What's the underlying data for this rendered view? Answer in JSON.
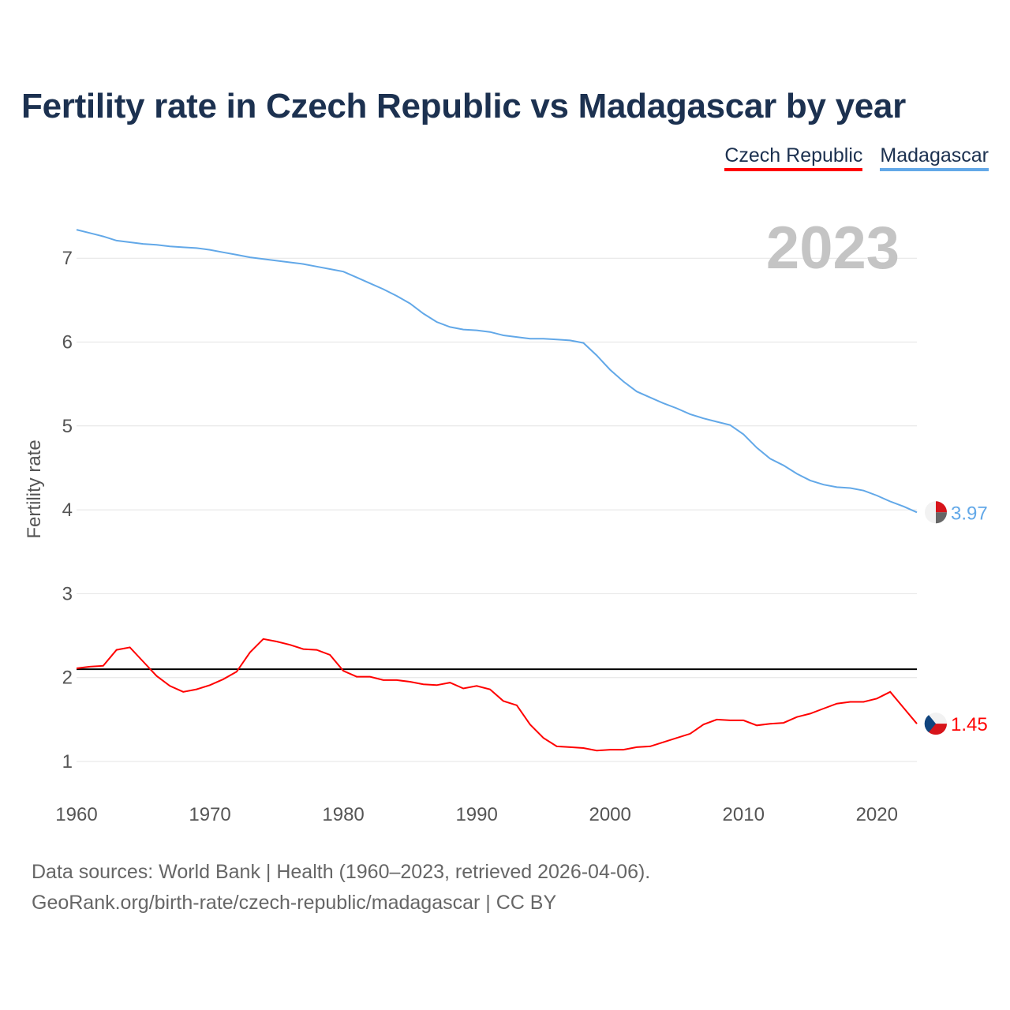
{
  "chart_data": {
    "type": "line",
    "title": "Fertility rate in Czech Republic vs Madagascar by year",
    "ylabel": "Fertility rate",
    "xlabel": "",
    "year_label": "2023",
    "xlim": [
      1960,
      2023
    ],
    "ylim": [
      0.5,
      7.5
    ],
    "x_ticks": [
      1960,
      1970,
      1980,
      1990,
      2000,
      2010,
      2020
    ],
    "y_ticks": [
      1,
      2,
      3,
      4,
      5,
      6,
      7
    ],
    "reference_line": 2.1,
    "legend": [
      "Czech Republic",
      "Madagascar"
    ],
    "legend_placement": "top-right",
    "x": [
      1960,
      1961,
      1962,
      1963,
      1964,
      1965,
      1966,
      1967,
      1968,
      1969,
      1970,
      1971,
      1972,
      1973,
      1974,
      1975,
      1976,
      1977,
      1978,
      1979,
      1980,
      1981,
      1982,
      1983,
      1984,
      1985,
      1986,
      1987,
      1988,
      1989,
      1990,
      1991,
      1992,
      1993,
      1994,
      1995,
      1996,
      1997,
      1998,
      1999,
      2000,
      2001,
      2002,
      2003,
      2004,
      2005,
      2006,
      2007,
      2008,
      2009,
      2010,
      2011,
      2012,
      2013,
      2014,
      2015,
      2016,
      2017,
      2018,
      2019,
      2020,
      2021,
      2022,
      2023
    ],
    "series": [
      {
        "name": "Czech Republic",
        "color": "#ff0000",
        "end_label": "1.45",
        "values": [
          2.11,
          2.13,
          2.14,
          2.33,
          2.36,
          2.19,
          2.02,
          1.9,
          1.83,
          1.86,
          1.91,
          1.98,
          2.07,
          2.3,
          2.46,
          2.43,
          2.39,
          2.34,
          2.33,
          2.27,
          2.08,
          2.01,
          2.01,
          1.97,
          1.97,
          1.95,
          1.92,
          1.91,
          1.94,
          1.87,
          1.9,
          1.86,
          1.72,
          1.67,
          1.44,
          1.28,
          1.18,
          1.17,
          1.16,
          1.13,
          1.14,
          1.14,
          1.17,
          1.18,
          1.23,
          1.28,
          1.33,
          1.44,
          1.5,
          1.49,
          1.49,
          1.43,
          1.45,
          1.46,
          1.53,
          1.57,
          1.63,
          1.69,
          1.71,
          1.71,
          1.75,
          1.83,
          1.64,
          1.45
        ]
      },
      {
        "name": "Madagascar",
        "color": "#62a8e8",
        "end_label": "3.97",
        "values": [
          7.34,
          7.3,
          7.26,
          7.21,
          7.19,
          7.17,
          7.16,
          7.14,
          7.13,
          7.12,
          7.1,
          7.07,
          7.04,
          7.01,
          6.99,
          6.97,
          6.95,
          6.93,
          6.9,
          6.87,
          6.84,
          6.77,
          6.7,
          6.63,
          6.55,
          6.46,
          6.34,
          6.24,
          6.18,
          6.15,
          6.14,
          6.12,
          6.08,
          6.06,
          6.04,
          6.04,
          6.03,
          6.02,
          5.99,
          5.84,
          5.67,
          5.53,
          5.41,
          5.34,
          5.27,
          5.21,
          5.14,
          5.09,
          5.05,
          5.01,
          4.9,
          4.74,
          4.61,
          4.53,
          4.43,
          4.35,
          4.3,
          4.27,
          4.26,
          4.23,
          4.17,
          4.1,
          4.04,
          3.97
        ]
      }
    ]
  },
  "footer": {
    "line1": "Data sources: World Bank | Health (1960–2023, retrieved 2026-04-06).",
    "line2": "GeoRank.org/birth-rate/czech-republic/madagascar | CC BY"
  }
}
